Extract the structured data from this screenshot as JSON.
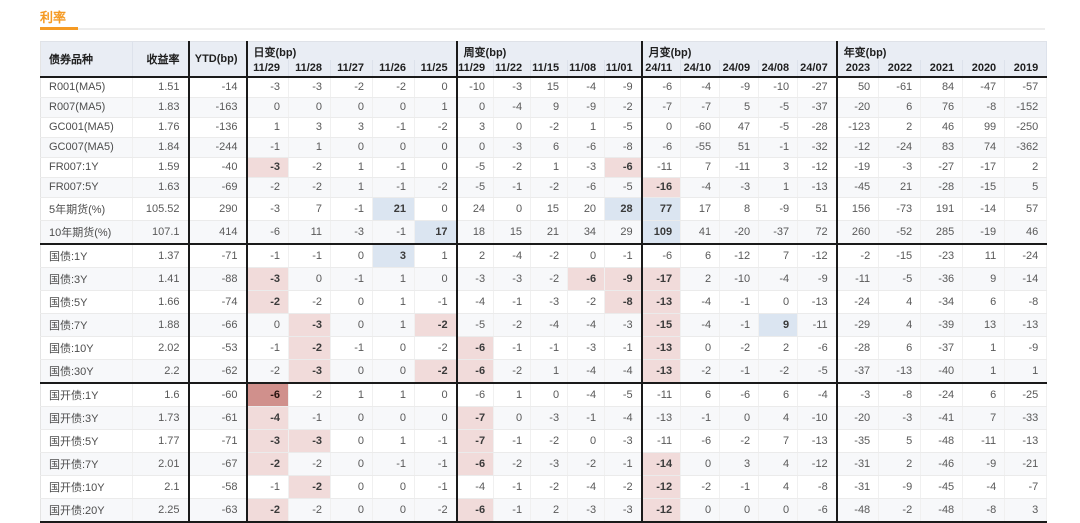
{
  "section": {
    "title": "利率"
  },
  "colors": {
    "accent": "#f59a23",
    "highlight_down": "#f1dbda",
    "highlight_down_strong": "#d0908c",
    "highlight_up": "#dbe5f1",
    "header_bg": "#e9edf4"
  },
  "table": {
    "fixed_headers": [
      "债券品种",
      "收益率",
      "YTD(bp)"
    ],
    "col_groups": [
      {
        "key": "daily",
        "label": "日变(bp)",
        "cols": [
          "11/29",
          "11/28",
          "11/27",
          "11/26",
          "11/25"
        ]
      },
      {
        "key": "weekly",
        "label": "周变(bp)",
        "cols": [
          "11/29",
          "11/22",
          "11/15",
          "11/08",
          "11/01"
        ]
      },
      {
        "key": "monthly",
        "label": "月变(bp)",
        "cols": [
          "24/11",
          "24/10",
          "24/09",
          "24/08",
          "24/07"
        ]
      },
      {
        "key": "yearly",
        "label": "年变(bp)",
        "cols": [
          "2023",
          "2022",
          "2021",
          "2020",
          "2019"
        ]
      }
    ],
    "rows": [
      {
        "name": "R001(MA5)",
        "yield": "1.51",
        "ytd": "-14",
        "daily": [
          "-3",
          "-3",
          "-2",
          "-2",
          "0"
        ],
        "weekly": [
          "-10",
          "-3",
          "15",
          "-4",
          "-9"
        ],
        "monthly": [
          "-6",
          "-4",
          "-9",
          "-10",
          "-27"
        ],
        "yearly": [
          "50",
          "-61",
          "84",
          "-47",
          "-57"
        ],
        "hl": {}
      },
      {
        "name": "R007(MA5)",
        "yield": "1.83",
        "ytd": "-163",
        "daily": [
          "0",
          "0",
          "0",
          "0",
          "1"
        ],
        "weekly": [
          "0",
          "-4",
          "9",
          "-9",
          "-2"
        ],
        "monthly": [
          "-7",
          "-7",
          "5",
          "-5",
          "-37"
        ],
        "yearly": [
          "-20",
          "6",
          "76",
          "-8",
          "-152"
        ],
        "hl": {}
      },
      {
        "name": "GC001(MA5)",
        "yield": "1.76",
        "ytd": "-136",
        "daily": [
          "1",
          "3",
          "3",
          "-1",
          "-2"
        ],
        "weekly": [
          "3",
          "0",
          "-2",
          "1",
          "-5"
        ],
        "monthly": [
          "0",
          "-60",
          "47",
          "-5",
          "-28"
        ],
        "yearly": [
          "-123",
          "2",
          "46",
          "99",
          "-250"
        ],
        "hl": {}
      },
      {
        "name": "GC007(MA5)",
        "yield": "1.84",
        "ytd": "-244",
        "daily": [
          "-1",
          "1",
          "0",
          "0",
          "0"
        ],
        "weekly": [
          "0",
          "-3",
          "6",
          "-6",
          "-8"
        ],
        "monthly": [
          "-6",
          "-55",
          "51",
          "-1",
          "-32"
        ],
        "yearly": [
          "-12",
          "-24",
          "83",
          "74",
          "-362"
        ],
        "hl": {}
      },
      {
        "name": "FR007:1Y",
        "yield": "1.59",
        "ytd": "-40",
        "daily": [
          "-3",
          "-2",
          "1",
          "-1",
          "0"
        ],
        "weekly": [
          "-5",
          "-2",
          "1",
          "-3",
          "-6"
        ],
        "monthly": [
          "-11",
          "7",
          "-11",
          "3",
          "-12"
        ],
        "yearly": [
          "-19",
          "-3",
          "-27",
          "-17",
          "2"
        ],
        "hl": {
          "daily.0": "down",
          "weekly.4": "down"
        }
      },
      {
        "name": "FR007:5Y",
        "yield": "1.63",
        "ytd": "-69",
        "daily": [
          "-2",
          "-2",
          "1",
          "-1",
          "-2"
        ],
        "weekly": [
          "-5",
          "-1",
          "-2",
          "-6",
          "-5"
        ],
        "monthly": [
          "-16",
          "-4",
          "-3",
          "1",
          "-13"
        ],
        "yearly": [
          "-45",
          "21",
          "-28",
          "-15",
          "5"
        ],
        "hl": {
          "monthly.0": "down"
        }
      },
      {
        "name": "5年期货(%)",
        "yield": "105.52",
        "ytd": "290",
        "daily": [
          "-3",
          "7",
          "-1",
          "21",
          "0"
        ],
        "weekly": [
          "24",
          "0",
          "15",
          "20",
          "28"
        ],
        "monthly": [
          "77",
          "17",
          "8",
          "-9",
          "51"
        ],
        "yearly": [
          "156",
          "-73",
          "191",
          "-14",
          "57"
        ],
        "hl": {
          "daily.3": "up",
          "weekly.4": "up",
          "monthly.0": "up"
        }
      },
      {
        "name": "10年期货(%)",
        "yield": "107.1",
        "ytd": "414",
        "daily": [
          "-6",
          "11",
          "-3",
          "-1",
          "17"
        ],
        "weekly": [
          "18",
          "15",
          "21",
          "34",
          "29"
        ],
        "monthly": [
          "109",
          "41",
          "-20",
          "-37",
          "72"
        ],
        "yearly": [
          "260",
          "-52",
          "285",
          "-19",
          "46"
        ],
        "hl": {
          "daily.4": "up",
          "monthly.0": "up"
        },
        "block_end": true
      },
      {
        "name": "国债:1Y",
        "yield": "1.37",
        "ytd": "-71",
        "daily": [
          "-1",
          "-1",
          "0",
          "3",
          "1"
        ],
        "weekly": [
          "2",
          "-4",
          "-2",
          "0",
          "-1"
        ],
        "monthly": [
          "-6",
          "6",
          "-12",
          "7",
          "-12"
        ],
        "yearly": [
          "-2",
          "-15",
          "-23",
          "11",
          "-24"
        ],
        "hl": {
          "daily.3": "up"
        }
      },
      {
        "name": "国债:3Y",
        "yield": "1.41",
        "ytd": "-88",
        "daily": [
          "-3",
          "0",
          "-1",
          "1",
          "0"
        ],
        "weekly": [
          "-3",
          "-3",
          "-2",
          "-6",
          "-9"
        ],
        "monthly": [
          "-17",
          "2",
          "-10",
          "-4",
          "-9"
        ],
        "yearly": [
          "-11",
          "-5",
          "-36",
          "9",
          "-14"
        ],
        "hl": {
          "daily.0": "down",
          "weekly.3": "down",
          "weekly.4": "down",
          "monthly.0": "down"
        }
      },
      {
        "name": "国债:5Y",
        "yield": "1.66",
        "ytd": "-74",
        "daily": [
          "-2",
          "-2",
          "0",
          "1",
          "-1"
        ],
        "weekly": [
          "-4",
          "-1",
          "-3",
          "-2",
          "-8"
        ],
        "monthly": [
          "-13",
          "-4",
          "-1",
          "0",
          "-13"
        ],
        "yearly": [
          "-24",
          "4",
          "-34",
          "6",
          "-8"
        ],
        "hl": {
          "daily.0": "down",
          "weekly.4": "down",
          "monthly.0": "down"
        }
      },
      {
        "name": "国债:7Y",
        "yield": "1.88",
        "ytd": "-66",
        "daily": [
          "0",
          "-3",
          "0",
          "1",
          "-2"
        ],
        "weekly": [
          "-5",
          "-2",
          "-4",
          "-4",
          "-3"
        ],
        "monthly": [
          "-15",
          "-4",
          "-1",
          "9",
          "-11"
        ],
        "yearly": [
          "-29",
          "4",
          "-39",
          "13",
          "-13"
        ],
        "hl": {
          "daily.1": "down",
          "daily.4": "down",
          "monthly.0": "down",
          "monthly.3": "up"
        }
      },
      {
        "name": "国债:10Y",
        "yield": "2.02",
        "ytd": "-53",
        "daily": [
          "-1",
          "-2",
          "-1",
          "0",
          "-2"
        ],
        "weekly": [
          "-6",
          "-1",
          "-1",
          "-3",
          "-1"
        ],
        "monthly": [
          "-13",
          "0",
          "-2",
          "2",
          "-6"
        ],
        "yearly": [
          "-28",
          "6",
          "-37",
          "1",
          "-9"
        ],
        "hl": {
          "daily.1": "down",
          "weekly.0": "down",
          "monthly.0": "down"
        }
      },
      {
        "name": "国债:30Y",
        "yield": "2.2",
        "ytd": "-62",
        "daily": [
          "-2",
          "-3",
          "0",
          "0",
          "-2"
        ],
        "weekly": [
          "-6",
          "-2",
          "1",
          "-4",
          "-4"
        ],
        "monthly": [
          "-13",
          "-2",
          "-1",
          "-2",
          "-5"
        ],
        "yearly": [
          "-37",
          "-13",
          "-40",
          "1",
          "1"
        ],
        "hl": {
          "daily.1": "down",
          "daily.4": "down",
          "weekly.0": "down",
          "monthly.0": "down"
        },
        "block_end": true
      },
      {
        "name": "国开债:1Y",
        "yield": "1.6",
        "ytd": "-60",
        "daily": [
          "-6",
          "-2",
          "1",
          "1",
          "0"
        ],
        "weekly": [
          "-6",
          "1",
          "0",
          "-4",
          "-5"
        ],
        "monthly": [
          "-11",
          "6",
          "-6",
          "6",
          "-4"
        ],
        "yearly": [
          "-3",
          "-8",
          "-24",
          "6",
          "-25"
        ],
        "hl": {
          "daily.0": "down2"
        }
      },
      {
        "name": "国开债:3Y",
        "yield": "1.73",
        "ytd": "-61",
        "daily": [
          "-4",
          "-1",
          "0",
          "0",
          "0"
        ],
        "weekly": [
          "-7",
          "0",
          "-3",
          "-1",
          "-4"
        ],
        "monthly": [
          "-13",
          "-1",
          "0",
          "4",
          "-10"
        ],
        "yearly": [
          "-20",
          "-3",
          "-41",
          "7",
          "-33"
        ],
        "hl": {
          "daily.0": "down",
          "weekly.0": "down"
        }
      },
      {
        "name": "国开债:5Y",
        "yield": "1.77",
        "ytd": "-71",
        "daily": [
          "-3",
          "-3",
          "0",
          "1",
          "-1"
        ],
        "weekly": [
          "-7",
          "-1",
          "-2",
          "0",
          "-3"
        ],
        "monthly": [
          "-11",
          "-6",
          "-2",
          "7",
          "-13"
        ],
        "yearly": [
          "-35",
          "5",
          "-48",
          "-11",
          "-13"
        ],
        "hl": {
          "daily.0": "down",
          "daily.1": "down",
          "weekly.0": "down"
        }
      },
      {
        "name": "国开债:7Y",
        "yield": "2.01",
        "ytd": "-67",
        "daily": [
          "-2",
          "-2",
          "0",
          "-1",
          "-1"
        ],
        "weekly": [
          "-6",
          "-2",
          "-3",
          "-2",
          "-1"
        ],
        "monthly": [
          "-14",
          "0",
          "3",
          "4",
          "-12"
        ],
        "yearly": [
          "-31",
          "2",
          "-46",
          "-9",
          "-21"
        ],
        "hl": {
          "daily.0": "down",
          "weekly.0": "down",
          "monthly.0": "down"
        }
      },
      {
        "name": "国开债:10Y",
        "yield": "2.1",
        "ytd": "-58",
        "daily": [
          "-1",
          "-2",
          "0",
          "0",
          "-1"
        ],
        "weekly": [
          "-4",
          "-1",
          "-2",
          "-4",
          "-2"
        ],
        "monthly": [
          "-12",
          "-2",
          "-1",
          "4",
          "-8"
        ],
        "yearly": [
          "-31",
          "-9",
          "-45",
          "-4",
          "-7"
        ],
        "hl": {
          "daily.1": "down",
          "monthly.0": "down"
        }
      },
      {
        "name": "国开债:20Y",
        "yield": "2.25",
        "ytd": "-63",
        "daily": [
          "-2",
          "-2",
          "0",
          "0",
          "-2"
        ],
        "weekly": [
          "-6",
          "-1",
          "2",
          "-3",
          "-3"
        ],
        "monthly": [
          "-12",
          "0",
          "0",
          "0",
          "-6"
        ],
        "yearly": [
          "-48",
          "-2",
          "-48",
          "-8",
          "3"
        ],
        "hl": {
          "daily.0": "down",
          "weekly.0": "down",
          "monthly.0": "down"
        },
        "block_end": true
      }
    ]
  }
}
